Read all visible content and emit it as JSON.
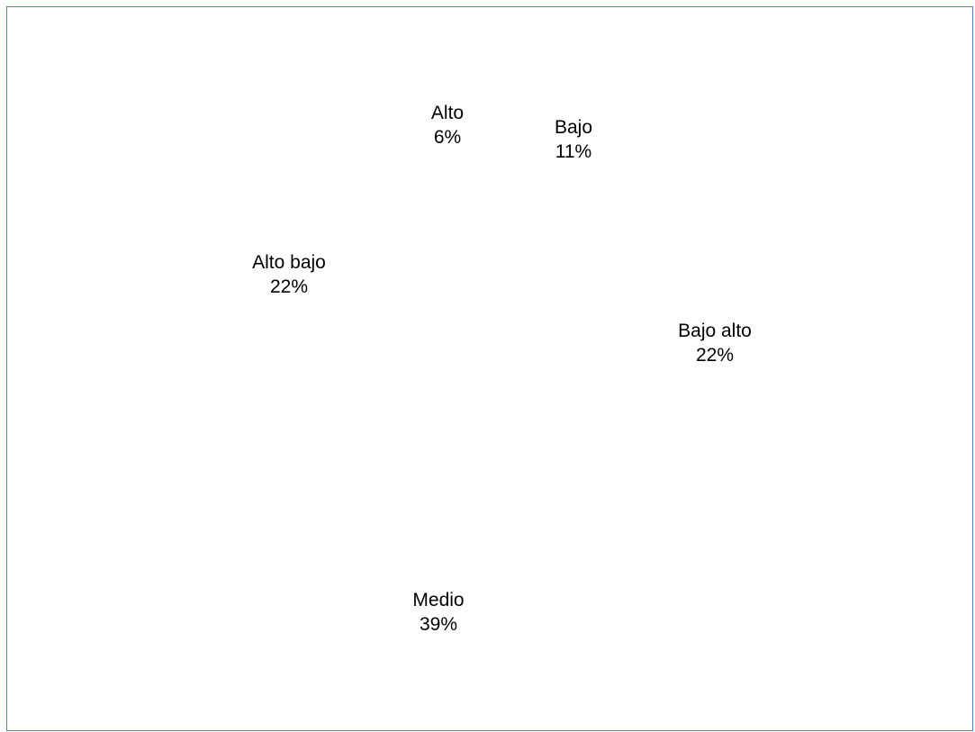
{
  "chart_data": {
    "type": "pie",
    "title": "",
    "slices": [
      {
        "label": "Alto",
        "value": 6,
        "display": "6%"
      },
      {
        "label": "Bajo",
        "value": 11,
        "display": "11%"
      },
      {
        "label": "Bajo alto",
        "value": 22,
        "display": "22%"
      },
      {
        "label": "Medio",
        "value": 39,
        "display": "39%"
      },
      {
        "label": "Alto bajo",
        "value": 22,
        "display": "22%"
      }
    ],
    "border_color": "#4f81bd"
  }
}
